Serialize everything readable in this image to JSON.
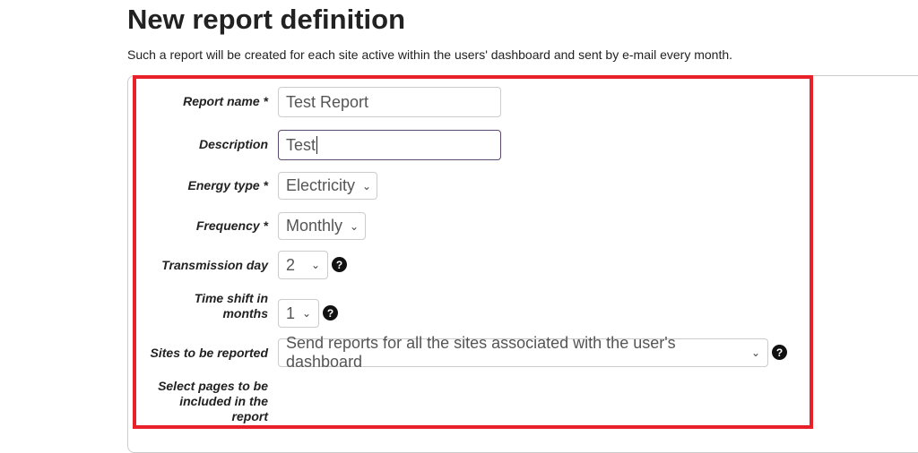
{
  "page": {
    "title": "New report definition",
    "subtitle": "Such a report will be created for each site active within the users' dashboard and sent by e-mail every month."
  },
  "form": {
    "report_name": {
      "label": "Report name *",
      "value": "Test Report"
    },
    "description": {
      "label": "Description",
      "value": "Test"
    },
    "energy_type": {
      "label": "Energy type *",
      "value": "Electricity"
    },
    "frequency": {
      "label": "Frequency *",
      "value": "Monthly"
    },
    "transmission_day": {
      "label": "Transmission day",
      "value": "2"
    },
    "time_shift": {
      "label_line1": "Time shift in",
      "label_line2": "months",
      "value": "1"
    },
    "sites": {
      "label": "Sites to be reported",
      "value": "Send reports for all the sites associated with the user's dashboard"
    },
    "pages": {
      "label_line1": "Select pages to be",
      "label_line2": "included in the",
      "label_line3": "report"
    }
  },
  "icons": {
    "help": "question-circle-icon",
    "chevron": "chevron-down-icon",
    "help_glyph": "?",
    "chevron_glyph": "⌄"
  },
  "colors": {
    "highlight": "#e8202a",
    "focus_border": "#5b4a6d"
  }
}
